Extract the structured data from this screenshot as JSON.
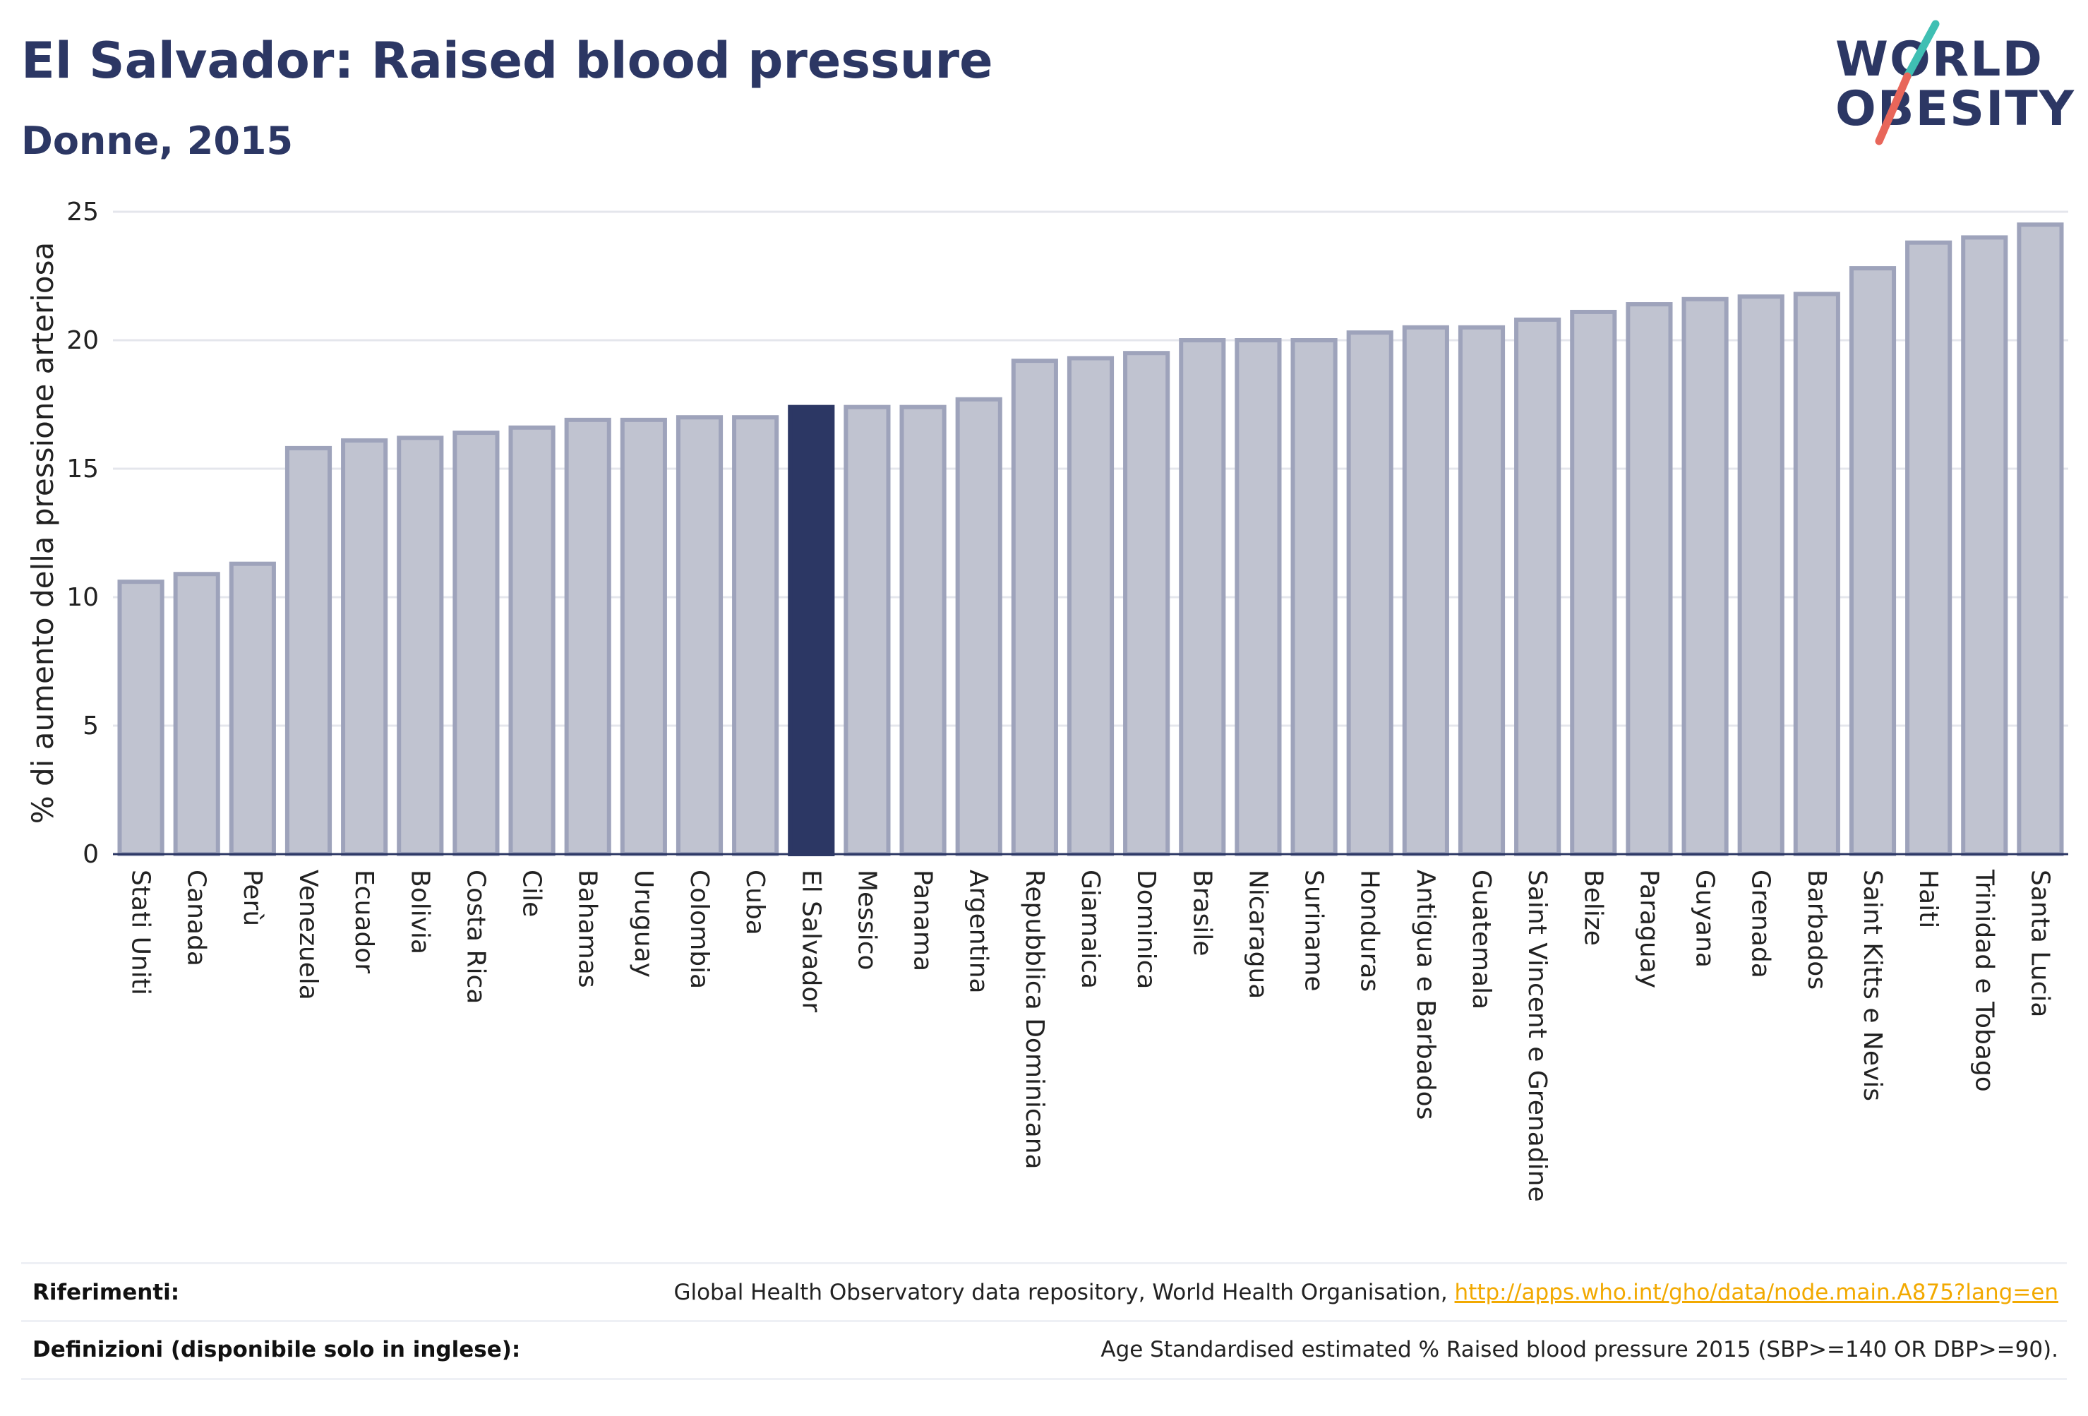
{
  "header": {
    "title": "El Salvador: Raised blood pressure",
    "subtitle": "Donne, 2015"
  },
  "logo": {
    "line1": "WORLD",
    "line2": "OBESITY",
    "colors": {
      "text": "#2c3764",
      "slash_top": "#3fbfb3",
      "slash_bottom": "#e8665a"
    }
  },
  "chart_data": {
    "type": "bar",
    "title": "",
    "xlabel": "",
    "ylabel": "% di aumento della pressione arteriosa",
    "ylim": [
      0,
      25
    ],
    "yticks": [
      0,
      5,
      10,
      15,
      20,
      25
    ],
    "grid": true,
    "highlight": "El Salvador",
    "colors": {
      "bar": "#c0c3d0",
      "bar_edge": "#9ea3bb",
      "highlight": "#2c3764",
      "axis": "#2c3764",
      "grid": "#e4e6ec"
    },
    "categories": [
      "Stati Uniti",
      "Canada",
      "Perù",
      "Venezuela",
      "Ecuador",
      "Bolivia",
      "Costa Rica",
      "Cile",
      "Bahamas",
      "Uruguay",
      "Colombia",
      "Cuba",
      "El Salvador",
      "Messico",
      "Panama",
      "Argentina",
      "Repubblica Dominicana",
      "Giamaica",
      "Dominica",
      "Brasile",
      "Nicaragua",
      "Suriname",
      "Honduras",
      "Antigua e Barbados",
      "Guatemala",
      "Saint Vincent e Grenadine",
      "Belize",
      "Paraguay",
      "Guyana",
      "Grenada",
      "Barbados",
      "Saint Kitts e Nevis",
      "Haiti",
      "Trinidad e Tobago",
      "Santa Lucia"
    ],
    "values": [
      10.6,
      10.9,
      11.3,
      15.8,
      16.1,
      16.2,
      16.4,
      16.6,
      16.9,
      16.9,
      17.0,
      17.0,
      17.4,
      17.4,
      17.4,
      17.7,
      19.2,
      19.3,
      19.5,
      20.0,
      20.0,
      20.0,
      20.3,
      20.5,
      20.5,
      20.8,
      21.1,
      21.4,
      21.6,
      21.7,
      21.8,
      22.8,
      23.8,
      24.0,
      24.5
    ]
  },
  "footer": {
    "references_label": "Riferimenti:",
    "references_text": "Global Health Observatory data repository, World Health Organisation, ",
    "references_link": "http://apps.who.int/gho/data/node.main.A875?lang=en",
    "definitions_label": "Definizioni (disponibile solo in inglese):",
    "definitions_text": "Age Standardised estimated % Raised blood pressure 2015 (SBP>=140 OR DBP>=90)."
  }
}
